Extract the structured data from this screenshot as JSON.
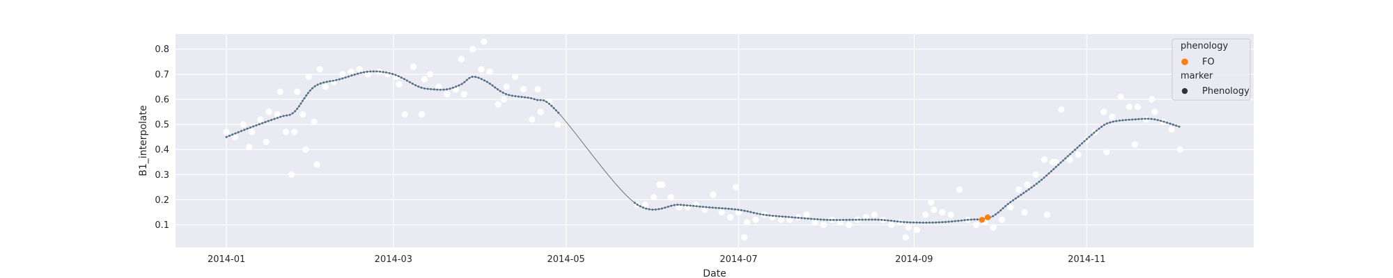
{
  "chart_data": {
    "type": "scatter",
    "xlabel": "Date",
    "ylabel": "B1_interpolate",
    "x_ticks": [
      "2014-01",
      "2014-03",
      "2014-05",
      "2014-07",
      "2014-09",
      "2014-11"
    ],
    "y_ticks": [
      "0.1",
      "0.2",
      "0.3",
      "0.4",
      "0.5",
      "0.6",
      "0.7",
      "0.8"
    ],
    "xlim": [
      "2013-12-14",
      "2014-12-30"
    ],
    "ylim": [
      0.01,
      0.86
    ],
    "grid": true,
    "legend_placement": "top-right",
    "colors": {
      "background": "#eaeaf2",
      "grid": "#ffffff",
      "observations": "#ffffff",
      "interpolated_line": "#6e6e6e",
      "interpolated_points": "#4c6f8a",
      "phenology": "#ff7f0e",
      "marker_legend": "#333333"
    },
    "legend": {
      "title_hue": "phenology",
      "hue_item": "FO",
      "title_style": "marker",
      "style_item": "Phenology"
    },
    "series": [
      {
        "role": "observations",
        "x": [
          "2014-01-01",
          "2014-01-04",
          "2014-01-07",
          "2014-01-10",
          "2014-01-13",
          "2014-01-16",
          "2014-01-19",
          "2014-01-22",
          "2014-01-24",
          "2014-01-26",
          "2014-01-28",
          "2014-01-30",
          "2014-02-01",
          "2014-02-03",
          "2014-02-05",
          "2014-02-08",
          "2014-02-11",
          "2014-02-14",
          "2014-02-17",
          "2014-02-20",
          "2014-02-24",
          "2014-02-27",
          "2014-03-02",
          "2014-03-05",
          "2014-03-08",
          "2014-03-11",
          "2014-03-14",
          "2014-03-17",
          "2014-03-20",
          "2014-03-23",
          "2014-03-26",
          "2014-03-29",
          "2014-04-01",
          "2014-04-04",
          "2014-04-07",
          "2014-04-10",
          "2014-04-13",
          "2014-04-16",
          "2014-04-19",
          "2014-04-22",
          "2014-04-25",
          "2014-04-28",
          "2014-01-09",
          "2014-01-15",
          "2014-01-20",
          "2014-01-25",
          "2014-01-29",
          "2014-02-02",
          "2014-03-03",
          "2014-03-12",
          "2014-03-25",
          "2014-04-02",
          "2014-04-09",
          "2014-04-21",
          "2014-05-26",
          "2014-05-29",
          "2014-06-01",
          "2014-06-04",
          "2014-06-07",
          "2014-06-10",
          "2014-06-13",
          "2014-06-16",
          "2014-06-19",
          "2014-06-22",
          "2014-06-25",
          "2014-06-28",
          "2014-07-01",
          "2014-07-04",
          "2014-07-07",
          "2014-07-10",
          "2014-07-13",
          "2014-07-16",
          "2014-07-19",
          "2014-07-22",
          "2014-07-25",
          "2014-07-28",
          "2014-07-31",
          "2014-08-03",
          "2014-08-06",
          "2014-08-09",
          "2014-08-12",
          "2014-08-15",
          "2014-08-18",
          "2014-08-21",
          "2014-08-24",
          "2014-08-27",
          "2014-08-30",
          "2014-09-02",
          "2014-09-05",
          "2014-09-08",
          "2014-09-11",
          "2014-09-14",
          "2014-09-17",
          "2014-09-20",
          "2014-09-23",
          "2014-09-26",
          "2014-09-29",
          "2014-10-02",
          "2014-10-05",
          "2014-10-08",
          "2014-10-11",
          "2014-10-14",
          "2014-10-17",
          "2014-10-20",
          "2014-10-23",
          "2014-10-26",
          "2014-10-29",
          "2014-11-01",
          "2014-11-04",
          "2014-11-07",
          "2014-11-10",
          "2014-11-13",
          "2014-11-16",
          "2014-11-19",
          "2014-11-22",
          "2014-11-25",
          "2014-11-28",
          "2014-12-01",
          "2014-12-04",
          "2014-06-03",
          "2014-06-30",
          "2014-07-03",
          "2014-08-29",
          "2014-09-07",
          "2014-10-10",
          "2014-10-18",
          "2014-10-21",
          "2014-11-08",
          "2014-11-18",
          "2014-11-24"
        ],
        "y": [
          0.47,
          0.45,
          0.5,
          0.47,
          0.52,
          0.55,
          0.54,
          0.47,
          0.3,
          0.63,
          0.54,
          0.69,
          0.51,
          0.72,
          0.65,
          0.67,
          0.7,
          0.71,
          0.72,
          0.7,
          0.71,
          0.7,
          0.69,
          0.54,
          0.73,
          0.54,
          0.7,
          0.65,
          0.62,
          0.64,
          0.62,
          0.8,
          0.72,
          0.71,
          0.58,
          0.65,
          0.69,
          0.64,
          0.52,
          0.55,
          0.59,
          0.5,
          0.41,
          0.43,
          0.63,
          0.47,
          0.4,
          0.34,
          0.66,
          0.68,
          0.76,
          0.83,
          0.6,
          0.64,
          0.18,
          0.18,
          0.21,
          0.26,
          0.21,
          0.17,
          0.17,
          0.18,
          0.16,
          0.22,
          0.15,
          0.13,
          0.15,
          0.11,
          0.12,
          0.14,
          0.13,
          0.12,
          0.12,
          0.13,
          0.14,
          0.11,
          0.1,
          0.12,
          0.11,
          0.1,
          0.12,
          0.13,
          0.14,
          0.12,
          0.1,
          0.11,
          0.09,
          0.08,
          0.14,
          0.16,
          0.15,
          0.14,
          0.24,
          0.12,
          0.1,
          0.11,
          0.09,
          0.12,
          0.17,
          0.24,
          0.26,
          0.3,
          0.36,
          0.35,
          0.56,
          0.36,
          0.38,
          0.44,
          0.47,
          0.55,
          0.53,
          0.61,
          0.57,
          0.57,
          0.52,
          0.55,
          0.51,
          0.48,
          0.4,
          0.26,
          0.25,
          0.05,
          0.05,
          0.19,
          0.15,
          0.14,
          0.35,
          0.39,
          0.42,
          0.6
        ]
      },
      {
        "role": "interpolated",
        "x": [
          "2014-01-01",
          "2014-01-10",
          "2014-01-20",
          "2014-01-25",
          "2014-02-01",
          "2014-02-10",
          "2014-02-20",
          "2014-03-01",
          "2014-03-10",
          "2014-03-15",
          "2014-03-20",
          "2014-03-25",
          "2014-03-29",
          "2014-04-03",
          "2014-04-10",
          "2014-04-20",
          "2014-04-28",
          "2014-05-25",
          "2014-06-10",
          "2014-06-20",
          "2014-07-01",
          "2014-07-10",
          "2014-07-20",
          "2014-08-01",
          "2014-08-10",
          "2014-08-20",
          "2014-08-30",
          "2014-09-10",
          "2014-09-20",
          "2014-09-28",
          "2014-10-05",
          "2014-10-15",
          "2014-10-25",
          "2014-11-05",
          "2014-11-10",
          "2014-11-18",
          "2014-11-25",
          "2014-12-04"
        ],
        "y": [
          0.45,
          0.49,
          0.53,
          0.55,
          0.65,
          0.68,
          0.71,
          0.7,
          0.65,
          0.64,
          0.64,
          0.66,
          0.69,
          0.67,
          0.62,
          0.6,
          0.55,
          0.19,
          0.18,
          0.17,
          0.16,
          0.14,
          0.13,
          0.12,
          0.12,
          0.12,
          0.11,
          0.11,
          0.12,
          0.13,
          0.19,
          0.27,
          0.37,
          0.48,
          0.51,
          0.52,
          0.52,
          0.49
        ]
      },
      {
        "role": "phenology",
        "name": "FO",
        "x": [
          "2014-09-25",
          "2014-09-27"
        ],
        "y": [
          0.12,
          0.13
        ]
      }
    ]
  }
}
